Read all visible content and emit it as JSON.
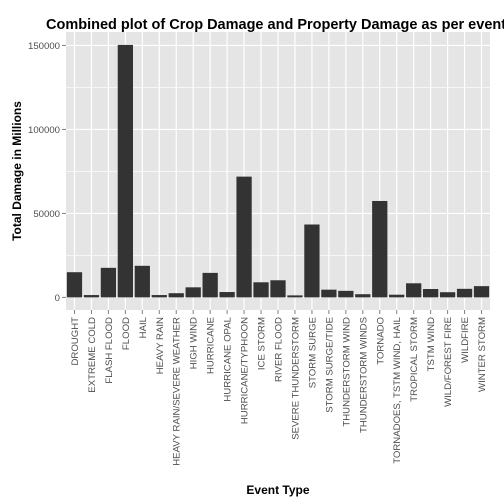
{
  "chart_data": {
    "type": "bar",
    "title": "Combined plot of Crop Damage and Property Damage as per event",
    "xlabel": "Event Type",
    "ylabel": "Total Damage in Millions",
    "categories": [
      "DROUGHT",
      "EXTREME COLD",
      "FLASH FLOOD",
      "FLOOD",
      "HAIL",
      "HEAVY RAIN",
      "HEAVY RAIN/SEVERE WEATHER",
      "HIGH WIND",
      "HURRICANE",
      "HURRICANE OPAL",
      "HURRICANE/TYPHOON",
      "ICE STORM",
      "RIVER FLOOD",
      "SEVERE THUNDERSTORM",
      "STORM SURGE",
      "STORM SURGE/TIDE",
      "THUNDERSTORM WIND",
      "THUNDERSTORM WINDS",
      "TORNADO",
      "TORNADOES, TSTM WIND, HAIL",
      "TROPICAL STORM",
      "TSTM WIND",
      "WILD/FOREST FIRE",
      "WILDFIRE",
      "WINTER STORM"
    ],
    "values": [
      15000,
      1400,
      17600,
      150300,
      18800,
      1400,
      2500,
      6000,
      14600,
      3200,
      71900,
      9000,
      10200,
      1200,
      43400,
      4600,
      3900,
      1900,
      57400,
      1600,
      8400,
      5000,
      3100,
      5100,
      6700
    ],
    "ylim": [
      -7500,
      158000
    ],
    "yticks": [
      0,
      50000,
      100000,
      150000
    ],
    "ytick_labels": [
      "0",
      "50000",
      "100000",
      "150000"
    ],
    "grid": true,
    "bar_color": "#333333",
    "panel_color": "#e5e5e5",
    "grid_color": "#ffffff"
  }
}
